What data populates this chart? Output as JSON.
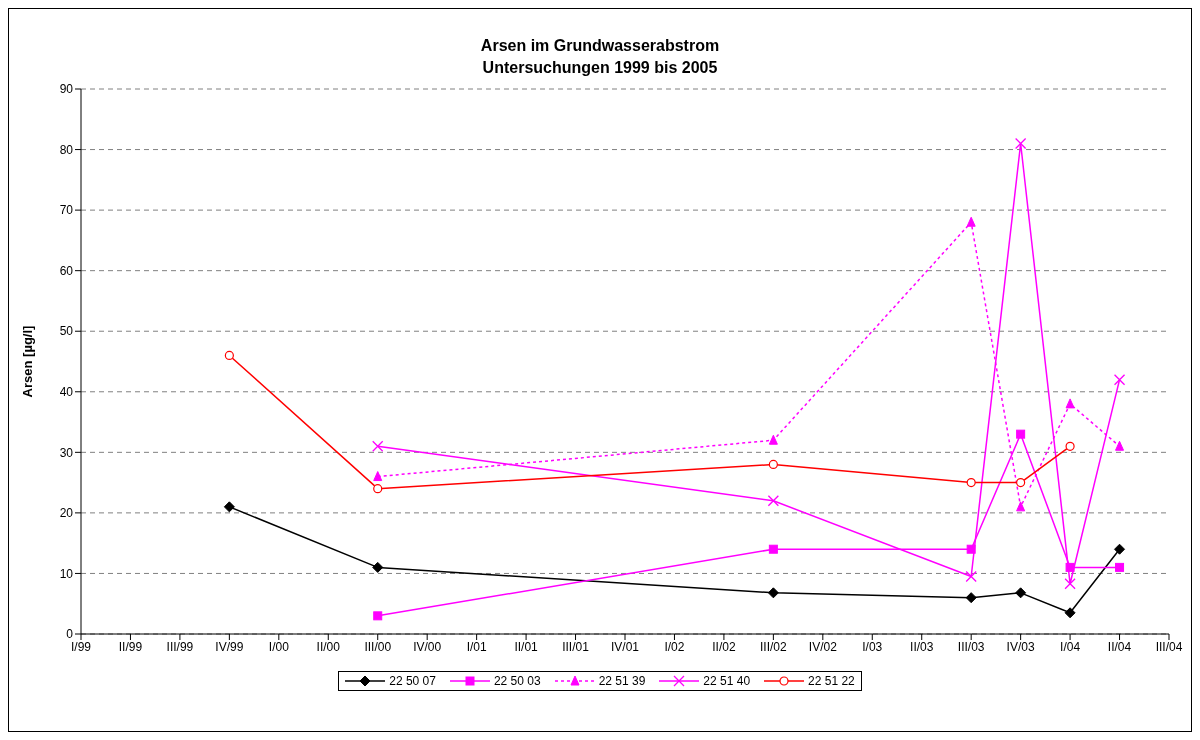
{
  "chart_data": {
    "type": "line",
    "title": "Arsen im Grundwasserabstrom\nUntersuchungen 1999 bis 2005",
    "ylabel": "Arsen [µg/l]",
    "categories": [
      "I/99",
      "II/99",
      "III/99",
      "IV/99",
      "I/00",
      "II/00",
      "III/00",
      "IV/00",
      "I/01",
      "II/01",
      "III/01",
      "IV/01",
      "I/02",
      "II/02",
      "III/02",
      "IV/02",
      "I/03",
      "II/03",
      "III/03",
      "IV/03",
      "I/04",
      "II/04",
      "III/04"
    ],
    "series": [
      {
        "name": "22 50 07",
        "color": "#000000",
        "marker": "diamond",
        "line_style": "solid",
        "values": [
          null,
          null,
          null,
          21,
          null,
          null,
          11,
          null,
          null,
          null,
          null,
          null,
          null,
          null,
          6.8,
          null,
          null,
          null,
          6,
          6.8,
          3.5,
          14,
          null
        ]
      },
      {
        "name": "22 50 03",
        "color": "#ff00ff",
        "marker": "square",
        "line_style": "solid",
        "values": [
          null,
          null,
          null,
          null,
          null,
          null,
          3,
          null,
          null,
          null,
          null,
          null,
          null,
          null,
          14,
          null,
          null,
          null,
          14,
          33,
          11,
          11,
          null
        ]
      },
      {
        "name": "22 51 39",
        "color": "#ff00ff",
        "marker": "triangle",
        "line_style": "dotted",
        "values": [
          null,
          null,
          null,
          null,
          null,
          null,
          26,
          null,
          null,
          null,
          null,
          null,
          null,
          null,
          32,
          null,
          null,
          null,
          68,
          21,
          38,
          31,
          null
        ]
      },
      {
        "name": "22 51 40",
        "color": "#ff00ff",
        "marker": "cross",
        "line_style": "solid",
        "values": [
          null,
          null,
          null,
          null,
          null,
          null,
          31,
          null,
          null,
          null,
          null,
          null,
          null,
          null,
          22,
          null,
          null,
          null,
          9.5,
          81,
          8.3,
          42,
          null
        ]
      },
      {
        "name": "22 51 22",
        "color": "#ff0000",
        "marker": "circle",
        "line_style": "solid",
        "values": [
          null,
          null,
          null,
          46,
          null,
          null,
          24,
          null,
          null,
          null,
          null,
          null,
          null,
          null,
          28,
          null,
          null,
          null,
          25,
          25,
          31,
          null,
          null
        ]
      }
    ],
    "ylim": [
      0,
      90
    ],
    "yticks": [
      0,
      10,
      20,
      30,
      40,
      50,
      60,
      70,
      80,
      90
    ],
    "grid": "y",
    "legend": "bottom"
  }
}
